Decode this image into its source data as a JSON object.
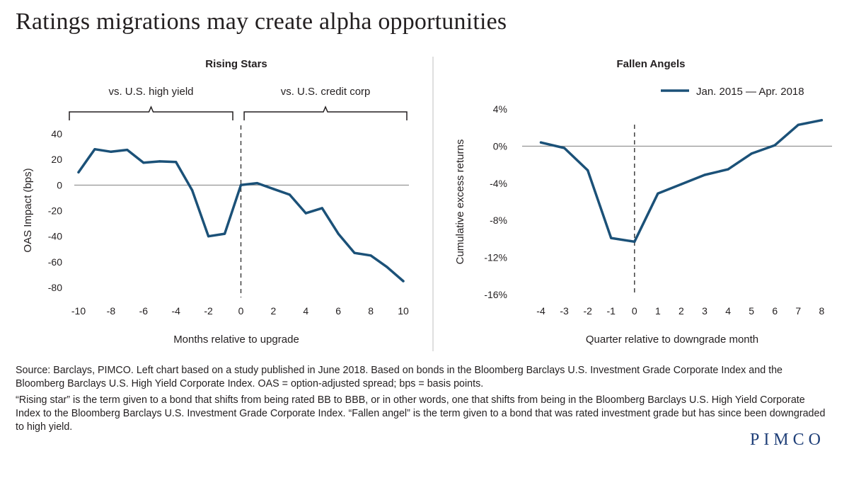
{
  "page": {
    "title": "Ratings migrations may create alpha opportunities",
    "logo": "PIMCO",
    "colors": {
      "line": "#1b5178",
      "zero_line": "#7f7f7f",
      "text": "#231f20",
      "divider": "#bfbfbf",
      "logo": "#1f3f78"
    }
  },
  "footnotes": {
    "source": "Source: Barclays, PIMCO. Left chart based on a study published in June 2018. Based on bonds in the Bloomberg Barclays U.S. Investment Grade Corporate Index and the  Bloomberg Barclays U.S. High Yield Corporate Index. OAS = option-adjusted spread; bps = basis points.",
    "definitions": "“Rising star” is the term given to a bond that shifts from being rated BB to BBB, or in other words, one that shifts from being in the Bloomberg Barclays U.S. High Yield Corporate Index to the Bloomberg Barclays U.S. Investment Grade Corporate Index. “Fallen angel” is the term given to a bond that was rated investment grade but has since been downgraded to high yield."
  },
  "chart_data": [
    {
      "type": "line",
      "title": "Rising Stars",
      "xlabel": "Months relative to upgrade",
      "ylabel": "OAS Impact (bps)",
      "xlim": [
        -10,
        10
      ],
      "ylim": [
        -80,
        40
      ],
      "x_ticks": [
        -10,
        -8,
        -6,
        -4,
        -2,
        0,
        2,
        4,
        6,
        8,
        10
      ],
      "x_tick_labels": [
        "-10",
        "-8",
        "-6",
        "-4",
        "-2",
        "0",
        "2",
        "4",
        "6",
        "8",
        "10"
      ],
      "y_ticks": [
        40,
        20,
        0,
        -20,
        -40,
        -60,
        -80
      ],
      "y_tick_labels": [
        "40",
        "20",
        "0",
        "-20",
        "-40",
        "-60",
        "-80"
      ],
      "annotations": [
        "vs. U.S. high yield",
        "vs. U.S. credit corp"
      ],
      "annotation_ranges": [
        [
          -10,
          -0.5
        ],
        [
          0.2,
          10
        ]
      ],
      "reference_x": 0,
      "series": [
        {
          "name": "OAS impact",
          "x": [
            -10,
            -9,
            -8,
            -7,
            -6,
            -5,
            -4,
            -3,
            -2,
            -1,
            0,
            1,
            2,
            3,
            4,
            5,
            6,
            7,
            8,
            9,
            10
          ],
          "values": [
            10,
            28,
            26,
            27.5,
            17.5,
            18.5,
            18,
            -4,
            -40,
            -38,
            0,
            1.5,
            -3,
            -7.5,
            -22,
            -18,
            -38,
            -53,
            -55,
            -64,
            -75
          ]
        }
      ]
    },
    {
      "type": "line",
      "title": "Fallen Angels",
      "xlabel": "Quarter relative to downgrade month",
      "ylabel": "Cumulative excess returns",
      "xlim": [
        -4.5,
        8.2
      ],
      "ylim": [
        -16,
        4
      ],
      "x_ticks": [
        -4,
        -3,
        -2,
        -1,
        0,
        1,
        2,
        3,
        4,
        5,
        6,
        7,
        8
      ],
      "x_tick_labels": [
        "-4",
        "-3",
        "-2",
        "-1",
        "0",
        "1",
        "2",
        "3",
        "4",
        "5",
        "6",
        "7",
        "8"
      ],
      "y_ticks": [
        4,
        0,
        -4,
        -8,
        -12,
        -16
      ],
      "y_tick_labels": [
        "4%",
        "0%",
        "-4%",
        "-8%",
        "-12%",
        "-16%"
      ],
      "reference_x": 0,
      "legend": "top-right",
      "series": [
        {
          "name": "Jan. 2015 — Apr. 2018",
          "x": [
            -4,
            -3,
            -2,
            -1,
            0,
            1,
            2,
            3,
            4,
            5,
            6,
            7,
            8
          ],
          "values": [
            0.4,
            -0.2,
            -2.6,
            -9.9,
            -10.3,
            -5.1,
            -4.1,
            -3.1,
            -2.5,
            -0.8,
            0.1,
            2.3,
            2.8
          ]
        }
      ]
    }
  ]
}
